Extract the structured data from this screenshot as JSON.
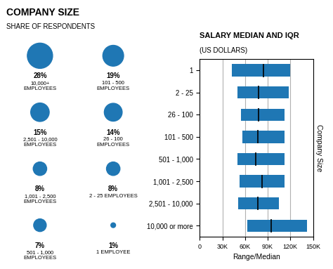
{
  "chart_data": [
    {
      "type": "bubble",
      "title": "COMPANY SIZE",
      "subtitle": "SHARE OF RESPONDENTS",
      "categories": [
        "10,000+\nEMPLOYEES",
        "101 - 500\nEMPLOYEES",
        "2,501 - 10,000\nEMPLOYEES",
        "26 - 100\nEMPLOYEES",
        "1,001 - 2,500\nEMPLOYEES",
        "2 - 25 EMPLOYEES",
        "501 - 1,000\nEMPLOYEES",
        "1 EMPLOYEE"
      ],
      "values": [
        28,
        19,
        15,
        14,
        8,
        8,
        7,
        1
      ],
      "value_labels": [
        "28%",
        "19%",
        "15%",
        "14%",
        "8%",
        "8%",
        "7%",
        "1%"
      ],
      "data_labels": true,
      "tick_labels": false
    },
    {
      "type": "bar",
      "orientation": "horizontal",
      "title": "SALARY MEDIAN AND IQR",
      "subtitle": "(US DOLLARS)",
      "categories": [
        "1",
        "2 - 25",
        "26 - 100",
        "101 - 500",
        "501 - 1,000",
        "1,001 - 2,500",
        "2,501 - 10,000",
        "10,000 or more"
      ],
      "starts": [
        42000,
        50000,
        55000,
        56000,
        50000,
        53000,
        51000,
        63000
      ],
      "ends": [
        120000,
        118000,
        112000,
        112000,
        112000,
        112000,
        105000,
        142000
      ],
      "medians": [
        84000,
        78000,
        78000,
        77000,
        74000,
        82000,
        77000,
        95000
      ],
      "x_label": "Range/Median",
      "y_label": "Company Size",
      "xlim": [
        0,
        150000
      ],
      "xticks": [
        0,
        {
          "value": 30000,
          "label": "30K"
        },
        {
          "value": 60000,
          "label": "60K"
        },
        {
          "value": 90000,
          "label": "90K"
        },
        {
          "value": 120000,
          "label": "120K"
        },
        {
          "value": 150000,
          "label": "150K"
        }
      ],
      "grid": true
    }
  ]
}
